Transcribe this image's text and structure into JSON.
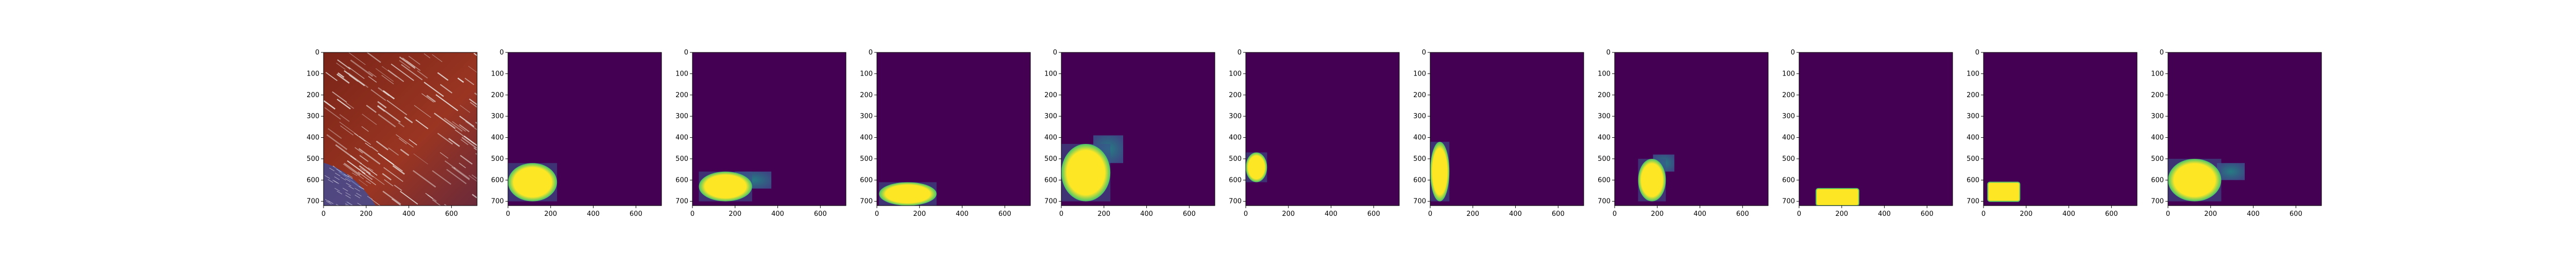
{
  "chart_data": {
    "type": "heatmap",
    "panel_count": 11,
    "colormap": "viridis",
    "axes": {
      "xlim": [
        0,
        720
      ],
      "ylim": [
        720,
        0
      ],
      "x_ticks": [
        0,
        200,
        400,
        600
      ],
      "x_tick_labels": [
        "0",
        "200",
        "400",
        "600"
      ],
      "y_ticks": [
        0,
        100,
        200,
        300,
        400,
        500,
        600,
        700
      ],
      "y_tick_labels": [
        "0",
        "100",
        "200",
        "300",
        "400",
        "500",
        "600",
        "700"
      ]
    },
    "panels": [
      {
        "kind": "tissue-image",
        "description_colors": [
          "#8a2a1e",
          "#f0ece8",
          "#3b4fa0"
        ]
      },
      {
        "kind": "mask",
        "blobs": [
          {
            "x": [
              0,
              230
            ],
            "y": [
              520,
              700
            ],
            "shape": "ellipse"
          }
        ]
      },
      {
        "kind": "mask",
        "blobs": [
          {
            "x": [
              30,
              280
            ],
            "y": [
              560,
              700
            ],
            "shape": "ellipse"
          },
          {
            "x": [
              200,
              370
            ],
            "y": [
              560,
              640
            ],
            "shape": "faint"
          }
        ]
      },
      {
        "kind": "mask",
        "blobs": [
          {
            "x": [
              10,
              280
            ],
            "y": [
              610,
              720
            ],
            "shape": "ellipse"
          }
        ]
      },
      {
        "kind": "mask",
        "blobs": [
          {
            "x": [
              0,
              230
            ],
            "y": [
              430,
              700
            ],
            "shape": "ellipse"
          },
          {
            "x": [
              150,
              290
            ],
            "y": [
              390,
              520
            ],
            "shape": "faint"
          }
        ]
      },
      {
        "kind": "mask",
        "blobs": [
          {
            "x": [
              0,
              100
            ],
            "y": [
              470,
              610
            ],
            "shape": "ellipse"
          }
        ]
      },
      {
        "kind": "mask",
        "blobs": [
          {
            "x": [
              0,
              90
            ],
            "y": [
              420,
              700
            ],
            "shape": "ellipse"
          }
        ]
      },
      {
        "kind": "mask",
        "blobs": [
          {
            "x": [
              110,
              240
            ],
            "y": [
              500,
              700
            ],
            "shape": "ellipse"
          },
          {
            "x": [
              180,
              280
            ],
            "y": [
              480,
              560
            ],
            "shape": "faint"
          }
        ]
      },
      {
        "kind": "mask",
        "blobs": [
          {
            "x": [
              80,
              280
            ],
            "y": [
              640,
              720
            ],
            "shape": "rect"
          }
        ]
      },
      {
        "kind": "mask",
        "blobs": [
          {
            "x": [
              20,
              170
            ],
            "y": [
              610,
              700
            ],
            "shape": "rect"
          }
        ]
      },
      {
        "kind": "mask",
        "blobs": [
          {
            "x": [
              0,
              250
            ],
            "y": [
              500,
              700
            ],
            "shape": "ellipse"
          },
          {
            "x": [
              230,
              360
            ],
            "y": [
              520,
              600
            ],
            "shape": "faint"
          }
        ]
      }
    ],
    "colors": {
      "background": "#440154",
      "low": "#3b528b",
      "mid": "#21918c",
      "high_mid": "#5ec962",
      "high": "#fde725"
    }
  }
}
